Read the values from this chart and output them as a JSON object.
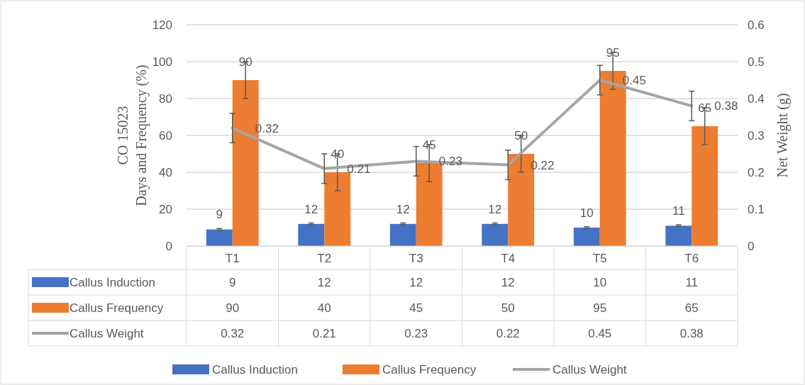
{
  "chart_data": {
    "type": "bar",
    "ylabel": "CO 15023\nDays and Frequency (%)",
    "y2label": "Net Weight (g)",
    "categories": [
      "T1",
      "T2",
      "T3",
      "T4",
      "T5",
      "T6"
    ],
    "series": [
      {
        "name": "Callus Induction",
        "color": "#4472c4",
        "values": [
          9,
          12,
          12,
          12,
          10,
          11
        ],
        "value_labels": [
          "9",
          "12",
          "12",
          "12",
          "10",
          "11"
        ],
        "errors": [
          0.5,
          0.5,
          0.5,
          0.5,
          0.5,
          0.5
        ]
      },
      {
        "name": "Callus Frequency",
        "color": "#ed7d31",
        "values": [
          90,
          40,
          45,
          50,
          95,
          65
        ],
        "value_labels": [
          "90",
          "40",
          "45",
          "50",
          "95",
          "65"
        ],
        "errors": [
          10,
          10,
          10,
          10,
          10,
          10
        ]
      },
      {
        "name": "Callus Weight",
        "type": "line",
        "axis": "y2",
        "color": "#a5a5a5",
        "values": [
          0.32,
          0.21,
          0.23,
          0.22,
          0.45,
          0.38
        ],
        "value_labels": [
          "0.32",
          "0.21",
          "0.23",
          "0.22",
          "0.45",
          "0.38"
        ],
        "errors": [
          0.04,
          0.04,
          0.04,
          0.04,
          0.04,
          0.04
        ]
      }
    ],
    "ylim": [
      0,
      120
    ],
    "yticks": [
      0,
      20,
      40,
      60,
      80,
      100,
      120
    ],
    "y2lim": [
      0,
      0.6
    ],
    "y2ticks": [
      {
        "value": 0,
        "label": "0"
      },
      {
        "value": 0.1,
        "label": "0.1"
      },
      {
        "value": 0.2,
        "label": "0.2"
      },
      {
        "value": 0.3,
        "label": "0.3"
      },
      {
        "value": 0.4,
        "label": "0.4"
      },
      {
        "value": 0.5,
        "label": "0.5"
      },
      {
        "value": 0.6,
        "label": "0.6"
      }
    ],
    "grid": "y",
    "legend": "bottom",
    "marker": "none"
  }
}
